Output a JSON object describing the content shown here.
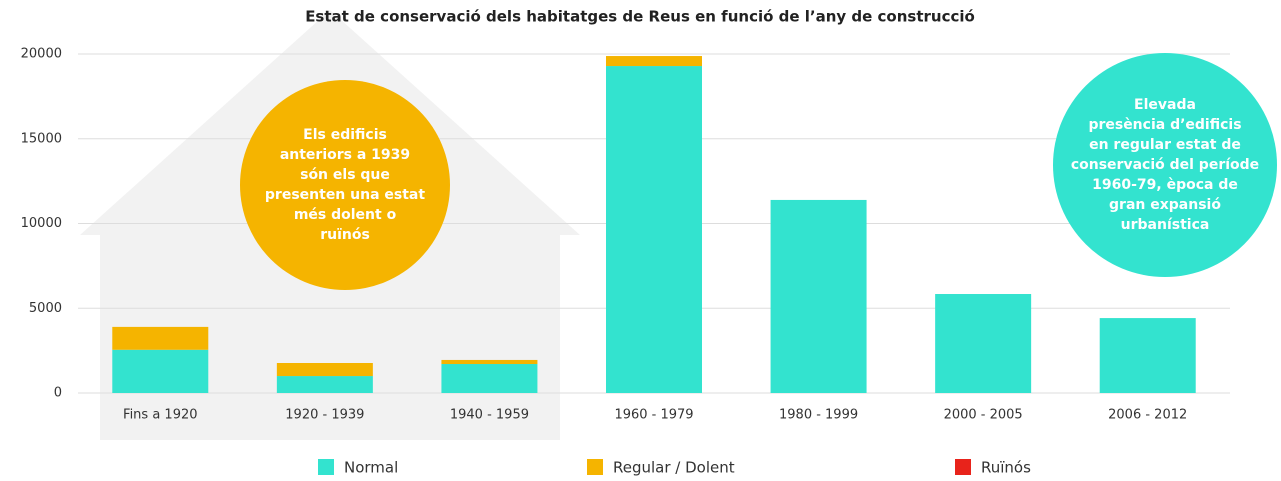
{
  "chart_data": {
    "type": "stacked_bar",
    "title": "Estat de conservació dels habitatges de Reus en funció de l’any de construcció",
    "categories": [
      "Fins a 1920",
      "1920 - 1939",
      "1940 - 1959",
      "1960 - 1979",
      "1980 - 1999",
      "2000 - 2005",
      "2006 - 2012"
    ],
    "series": [
      {
        "name": "Normal",
        "color": "#33e3cf",
        "values": [
          2550,
          1000,
          1710,
          19290,
          11390,
          5840,
          4420
        ]
      },
      {
        "name": "Regular / Dolent",
        "color": "#f5b400",
        "values": [
          1350,
          770,
          240,
          590,
          0,
          0,
          0
        ]
      },
      {
        "name": "Ruïnós",
        "color": "#e8231b",
        "values": [
          0,
          0,
          0,
          0,
          0,
          0,
          0
        ]
      }
    ],
    "ylim": [
      0,
      20000
    ],
    "yticks": [
      0,
      5000,
      10000,
      15000,
      20000
    ],
    "grid": true,
    "legend": "bottom",
    "annotations": [
      {
        "color": "#f5b400",
        "lines": [
          "Els edificis",
          "anteriors a 1939",
          "són els que",
          "presenten una estat",
          "més dolent o",
          "ruïnós"
        ]
      },
      {
        "color": "#33e3cf",
        "lines": [
          "Elevada",
          "presència d’edificis",
          "en regular estat de",
          "conservació del període",
          "1960-79, època de",
          "gran expansió",
          "urbanística"
        ]
      }
    ]
  }
}
